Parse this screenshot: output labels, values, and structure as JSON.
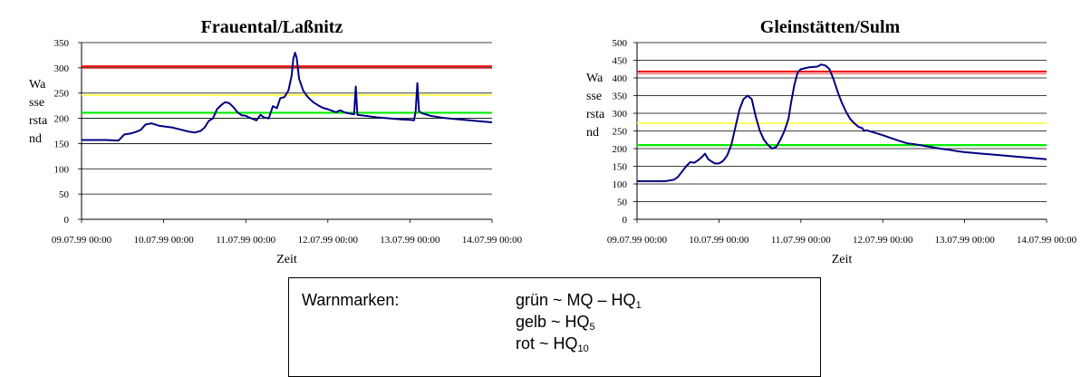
{
  "chart_data": [
    {
      "type": "line",
      "title": "Frauental/Laßnitz",
      "xlabel": "Zeit",
      "ylabel_lines": [
        "Wa",
        "sse",
        "rsta",
        "nd"
      ],
      "x_ticks": [
        "09.07.99 00:00",
        "10.07.99 00:00",
        "11.07.99 00:00",
        "12.07.99 00:00",
        "13.07.99 00:00",
        "14.07.99 00:00"
      ],
      "y_ticks": [
        0,
        50,
        100,
        150,
        200,
        250,
        300,
        350
      ],
      "xlim_days": [
        0,
        5
      ],
      "ylim": [
        0,
        350
      ],
      "grid": "horizontal",
      "warning_levels": {
        "green": 211,
        "yellow": 246,
        "red": 303
      },
      "series": [
        {
          "color": "#000080",
          "points": [
            [
              0,
              157
            ],
            [
              0.15,
              157
            ],
            [
              0.3,
              157
            ],
            [
              0.45,
              156
            ],
            [
              0.52,
              168
            ],
            [
              0.6,
              170
            ],
            [
              0.66,
              173
            ],
            [
              0.72,
              177
            ],
            [
              0.78,
              188
            ],
            [
              0.85,
              190
            ],
            [
              0.95,
              185
            ],
            [
              1.1,
              182
            ],
            [
              1.2,
              178
            ],
            [
              1.3,
              174
            ],
            [
              1.38,
              172
            ],
            [
              1.45,
              175
            ],
            [
              1.5,
              182
            ],
            [
              1.55,
              195
            ],
            [
              1.6,
              200
            ],
            [
              1.65,
              218
            ],
            [
              1.7,
              226
            ],
            [
              1.75,
              232
            ],
            [
              1.8,
              230
            ],
            [
              1.85,
              222
            ],
            [
              1.9,
              212
            ],
            [
              1.95,
              206
            ],
            [
              2.0,
              205
            ],
            [
              2.05,
              201
            ],
            [
              2.1,
              198
            ],
            [
              2.13,
              196
            ],
            [
              2.18,
              207
            ],
            [
              2.22,
              202
            ],
            [
              2.28,
              200
            ],
            [
              2.33,
              224
            ],
            [
              2.38,
              220
            ],
            [
              2.42,
              240
            ],
            [
              2.47,
              242
            ],
            [
              2.52,
              255
            ],
            [
              2.56,
              285
            ],
            [
              2.58,
              318
            ],
            [
              2.6,
              330
            ],
            [
              2.62,
              320
            ],
            [
              2.65,
              278
            ],
            [
              2.7,
              255
            ],
            [
              2.75,
              243
            ],
            [
              2.82,
              232
            ],
            [
              2.9,
              224
            ],
            [
              2.95,
              220
            ],
            [
              3.0,
              218
            ],
            [
              3.05,
              215
            ],
            [
              3.1,
              212
            ],
            [
              3.15,
              216
            ],
            [
              3.2,
              212
            ],
            [
              3.25,
              210
            ],
            [
              3.32,
              208
            ],
            [
              3.34,
              263
            ],
            [
              3.36,
              207
            ],
            [
              3.45,
              205
            ],
            [
              3.6,
              202
            ],
            [
              3.75,
              200
            ],
            [
              3.9,
              198
            ],
            [
              4.0,
              197
            ],
            [
              4.05,
              196
            ],
            [
              4.07,
              214
            ],
            [
              4.09,
              270
            ],
            [
              4.11,
              214
            ],
            [
              4.15,
              210
            ],
            [
              4.25,
              205
            ],
            [
              4.4,
              201
            ],
            [
              4.6,
              198
            ],
            [
              4.8,
              195
            ],
            [
              5.0,
              192
            ]
          ]
        }
      ]
    },
    {
      "type": "line",
      "title": "Gleinstätten/Sulm",
      "xlabel": "Zeit",
      "ylabel_lines": [
        "Wa",
        "sse",
        "rsta",
        "nd"
      ],
      "x_ticks": [
        "09.07.99 00:00",
        "10.07.99 00:00",
        "11.07.99 00:00",
        "12.07.99 00:00",
        "13.07.99 00:00",
        "14.07.99 00:00"
      ],
      "y_ticks": [
        0,
        50,
        100,
        150,
        200,
        250,
        300,
        350,
        400,
        450,
        500
      ],
      "xlim_days": [
        0,
        5
      ],
      "ylim": [
        0,
        500
      ],
      "grid": "horizontal",
      "warning_levels": {
        "green": 210,
        "yellow": 272,
        "red": 418
      },
      "series": [
        {
          "color": "#000080",
          "points": [
            [
              0,
              108
            ],
            [
              0.2,
              108
            ],
            [
              0.35,
              108
            ],
            [
              0.45,
              112
            ],
            [
              0.5,
              120
            ],
            [
              0.55,
              135
            ],
            [
              0.6,
              150
            ],
            [
              0.65,
              162
            ],
            [
              0.7,
              160
            ],
            [
              0.75,
              168
            ],
            [
              0.8,
              178
            ],
            [
              0.83,
              186
            ],
            [
              0.87,
              170
            ],
            [
              0.9,
              165
            ],
            [
              0.95,
              158
            ],
            [
              1.0,
              158
            ],
            [
              1.05,
              165
            ],
            [
              1.1,
              180
            ],
            [
              1.15,
              210
            ],
            [
              1.2,
              260
            ],
            [
              1.25,
              310
            ],
            [
              1.3,
              340
            ],
            [
              1.35,
              350
            ],
            [
              1.4,
              340
            ],
            [
              1.45,
              290
            ],
            [
              1.5,
              250
            ],
            [
              1.55,
              225
            ],
            [
              1.6,
              210
            ],
            [
              1.65,
              200
            ],
            [
              1.7,
              205
            ],
            [
              1.75,
              225
            ],
            [
              1.8,
              250
            ],
            [
              1.85,
              285
            ],
            [
              1.88,
              330
            ],
            [
              1.92,
              380
            ],
            [
              1.96,
              415
            ],
            [
              2.0,
              425
            ],
            [
              2.1,
              430
            ],
            [
              2.2,
              432
            ],
            [
              2.25,
              438
            ],
            [
              2.3,
              435
            ],
            [
              2.35,
              425
            ],
            [
              2.4,
              395
            ],
            [
              2.45,
              360
            ],
            [
              2.5,
              330
            ],
            [
              2.55,
              305
            ],
            [
              2.6,
              285
            ],
            [
              2.65,
              272
            ],
            [
              2.7,
              262
            ],
            [
              2.75,
              258
            ],
            [
              2.77,
              250
            ],
            [
              2.8,
              252
            ],
            [
              2.9,
              245
            ],
            [
              3.0,
              238
            ],
            [
              3.1,
              230
            ],
            [
              3.2,
              222
            ],
            [
              3.3,
              215
            ],
            [
              3.4,
              212
            ],
            [
              3.5,
              208
            ],
            [
              3.6,
              204
            ],
            [
              3.7,
              200
            ],
            [
              3.8,
              197
            ],
            [
              3.9,
              193
            ],
            [
              4.0,
              190
            ],
            [
              4.2,
              186
            ],
            [
              4.4,
              182
            ],
            [
              4.6,
              178
            ],
            [
              4.8,
              174
            ],
            [
              5.0,
              170
            ]
          ]
        }
      ]
    }
  ],
  "legend": {
    "title": "Warnmarken:",
    "rows": [
      {
        "text": "grün ~ MQ – HQ",
        "sub": "1"
      },
      {
        "text": "gelb ~ HQ",
        "sub": "5"
      },
      {
        "text": "rot ~ HQ",
        "sub": "10"
      }
    ]
  }
}
